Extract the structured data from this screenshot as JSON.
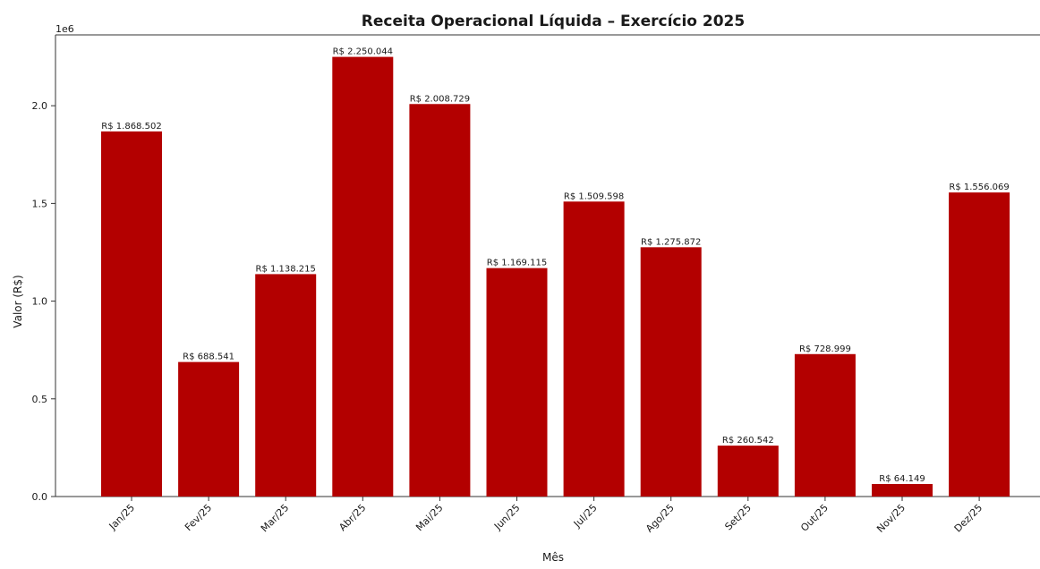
{
  "chart_data": {
    "type": "bar",
    "title": "Receita Operacional Líquida – Exercício 2025",
    "xlabel": "Mês",
    "ylabel": "Valor (R$)",
    "y_scale_label": "1e6",
    "categories": [
      "Jan/25",
      "Fev/25",
      "Mar/25",
      "Abr/25",
      "Mai/25",
      "Jun/25",
      "Jul/25",
      "Ago/25",
      "Set/25",
      "Out/25",
      "Nov/25",
      "Dez/25"
    ],
    "values": [
      1868502,
      688541,
      1138215,
      2250044,
      2008729,
      1169115,
      1509598,
      1275872,
      260542,
      728999,
      64149,
      1556069
    ],
    "value_labels": [
      "R$ 1.868.502",
      "R$ 688.541",
      "R$ 1.138.215",
      "R$ 2.250.044",
      "R$ 2.008.729",
      "R$ 1.169.115",
      "R$ 1.509.598",
      "R$ 1.275.872",
      "R$ 260.542",
      "R$ 728.999",
      "R$ 64.149",
      "R$ 1.556.069"
    ],
    "y_ticks": [
      0,
      500000,
      1000000,
      1500000,
      2000000
    ],
    "y_tick_labels": [
      "0.0",
      "0.5",
      "1.0",
      "1.5",
      "2.0"
    ],
    "ylim": [
      0,
      2362546
    ],
    "bar_color": "#b30000",
    "grid": false,
    "legend": "none"
  }
}
